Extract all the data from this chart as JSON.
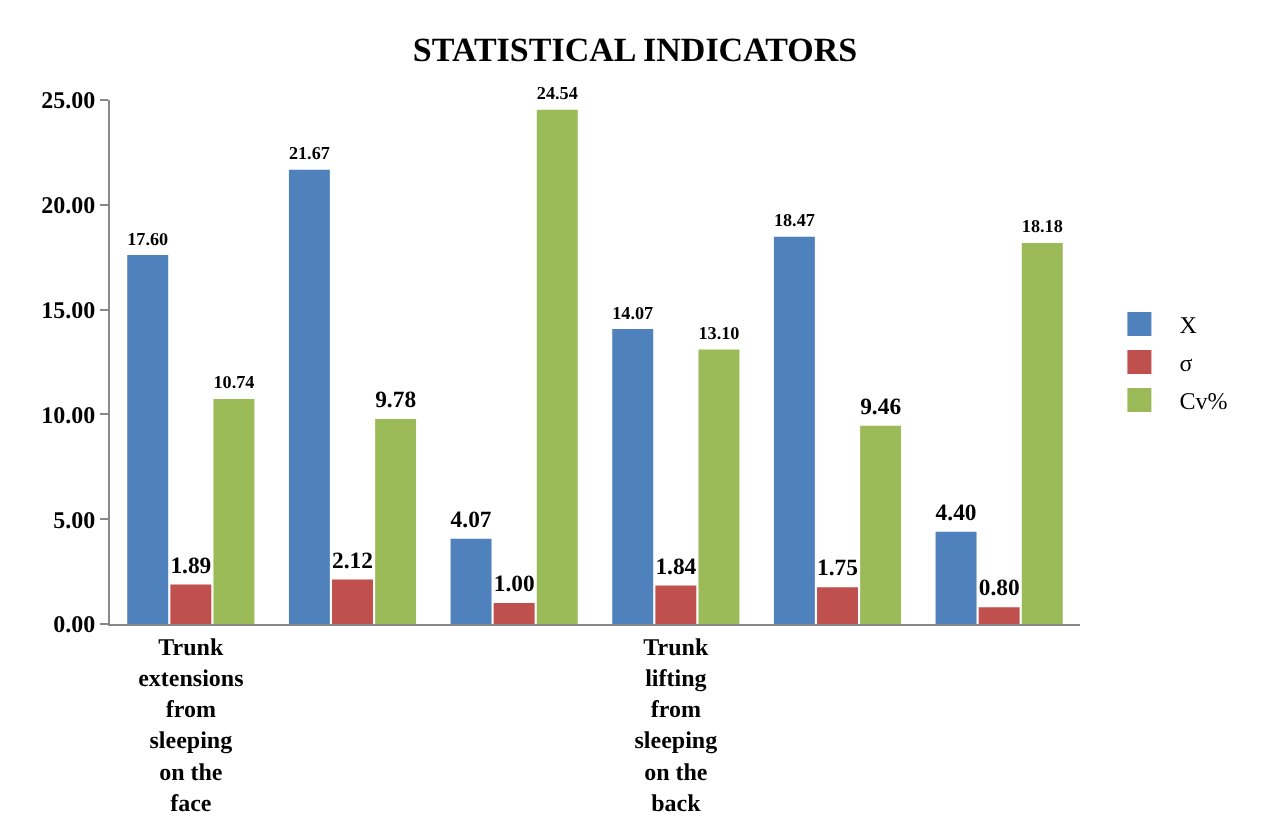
{
  "chart_data": {
    "type": "bar",
    "title": "STATISTICAL INDICATORS",
    "categories": [
      "Trunk extensions from sleeping on the face",
      null,
      null,
      "Trunk lifting from sleeping on the back",
      null,
      null
    ],
    "series": [
      {
        "name": "X",
        "color": "#4f81bd",
        "values": [
          17.6,
          21.67,
          4.07,
          14.07,
          18.47,
          4.4
        ],
        "value_labels": [
          "17.60",
          "21.67",
          "4.07",
          "14.07",
          "18.47",
          "4.40"
        ]
      },
      {
        "name": "σ",
        "color": "#c0504d",
        "values": [
          1.89,
          2.12,
          1.0,
          1.84,
          1.75,
          0.8
        ],
        "value_labels": [
          "1.89",
          "2.12",
          "1.00",
          "1.84",
          "1.75",
          "0.80"
        ]
      },
      {
        "name": "Cv%",
        "color": "#9bbb59",
        "values": [
          10.74,
          9.78,
          24.54,
          13.1,
          9.46,
          18.18
        ],
        "value_labels": [
          "10.74",
          "9.78",
          "24.54",
          "13.10",
          "9.46",
          "18.18"
        ]
      }
    ],
    "ylim": [
      0,
      25
    ],
    "yticks": [
      {
        "value": 0,
        "label": "0.00"
      },
      {
        "value": 5,
        "label": "5.00"
      },
      {
        "value": 10,
        "label": "10.00"
      },
      {
        "value": 15,
        "label": "15.00"
      },
      {
        "value": 20,
        "label": "20.00"
      },
      {
        "value": 25,
        "label": "25.00"
      }
    ],
    "grid": false,
    "legend": "right"
  }
}
